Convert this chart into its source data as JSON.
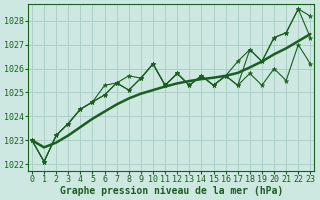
{
  "xlabel": "Graphe pression niveau de la mer (hPa)",
  "x_values": [
    0,
    1,
    2,
    3,
    4,
    5,
    6,
    7,
    8,
    9,
    10,
    11,
    12,
    13,
    14,
    15,
    16,
    17,
    18,
    19,
    20,
    21,
    22,
    23
  ],
  "y_zigzag1": [
    1023.0,
    1022.1,
    1023.2,
    1023.7,
    1024.3,
    1024.6,
    1024.9,
    1025.4,
    1025.1,
    1025.6,
    1026.2,
    1025.3,
    1025.8,
    1025.3,
    1025.7,
    1025.3,
    1025.7,
    1025.3,
    1025.8,
    1025.3,
    1026.0,
    1025.5,
    1027.0,
    1026.2
  ],
  "y_zigzag2": [
    1023.0,
    1022.1,
    1023.2,
    1023.7,
    1024.3,
    1024.6,
    1025.3,
    1025.4,
    1025.7,
    1025.6,
    1026.2,
    1025.3,
    1025.8,
    1025.3,
    1025.7,
    1025.3,
    1025.7,
    1026.3,
    1026.8,
    1026.3,
    1027.3,
    1027.5,
    1028.5,
    1027.3
  ],
  "y_zigzag3": [
    1023.0,
    1022.1,
    1023.2,
    1023.7,
    1024.3,
    1024.6,
    1024.9,
    1025.4,
    1025.1,
    1025.6,
    1026.2,
    1025.3,
    1025.8,
    1025.3,
    1025.7,
    1025.3,
    1025.7,
    1025.3,
    1026.8,
    1026.3,
    1027.3,
    1027.5,
    1028.5,
    1028.2
  ],
  "y_smooth": [
    1023.0,
    1022.7,
    1022.9,
    1023.2,
    1023.55,
    1023.9,
    1024.2,
    1024.5,
    1024.75,
    1024.95,
    1025.1,
    1025.25,
    1025.38,
    1025.48,
    1025.56,
    1025.62,
    1025.7,
    1025.82,
    1026.05,
    1026.3,
    1026.6,
    1026.85,
    1027.15,
    1027.45
  ],
  "ylim": [
    1021.7,
    1028.7
  ],
  "xlim": [
    -0.3,
    23.3
  ],
  "bg_color": "#cce8e0",
  "grid_color": "#aaccc4",
  "line_color": "#1a5e20",
  "marker_color": "#1a5e20",
  "yticks": [
    1022,
    1023,
    1024,
    1025,
    1026,
    1027,
    1028
  ],
  "xticks": [
    0,
    1,
    2,
    3,
    4,
    5,
    6,
    7,
    8,
    9,
    10,
    11,
    12,
    13,
    14,
    15,
    16,
    17,
    18,
    19,
    20,
    21,
    22,
    23
  ],
  "xlabel_fontsize": 7,
  "tick_fontsize": 6
}
